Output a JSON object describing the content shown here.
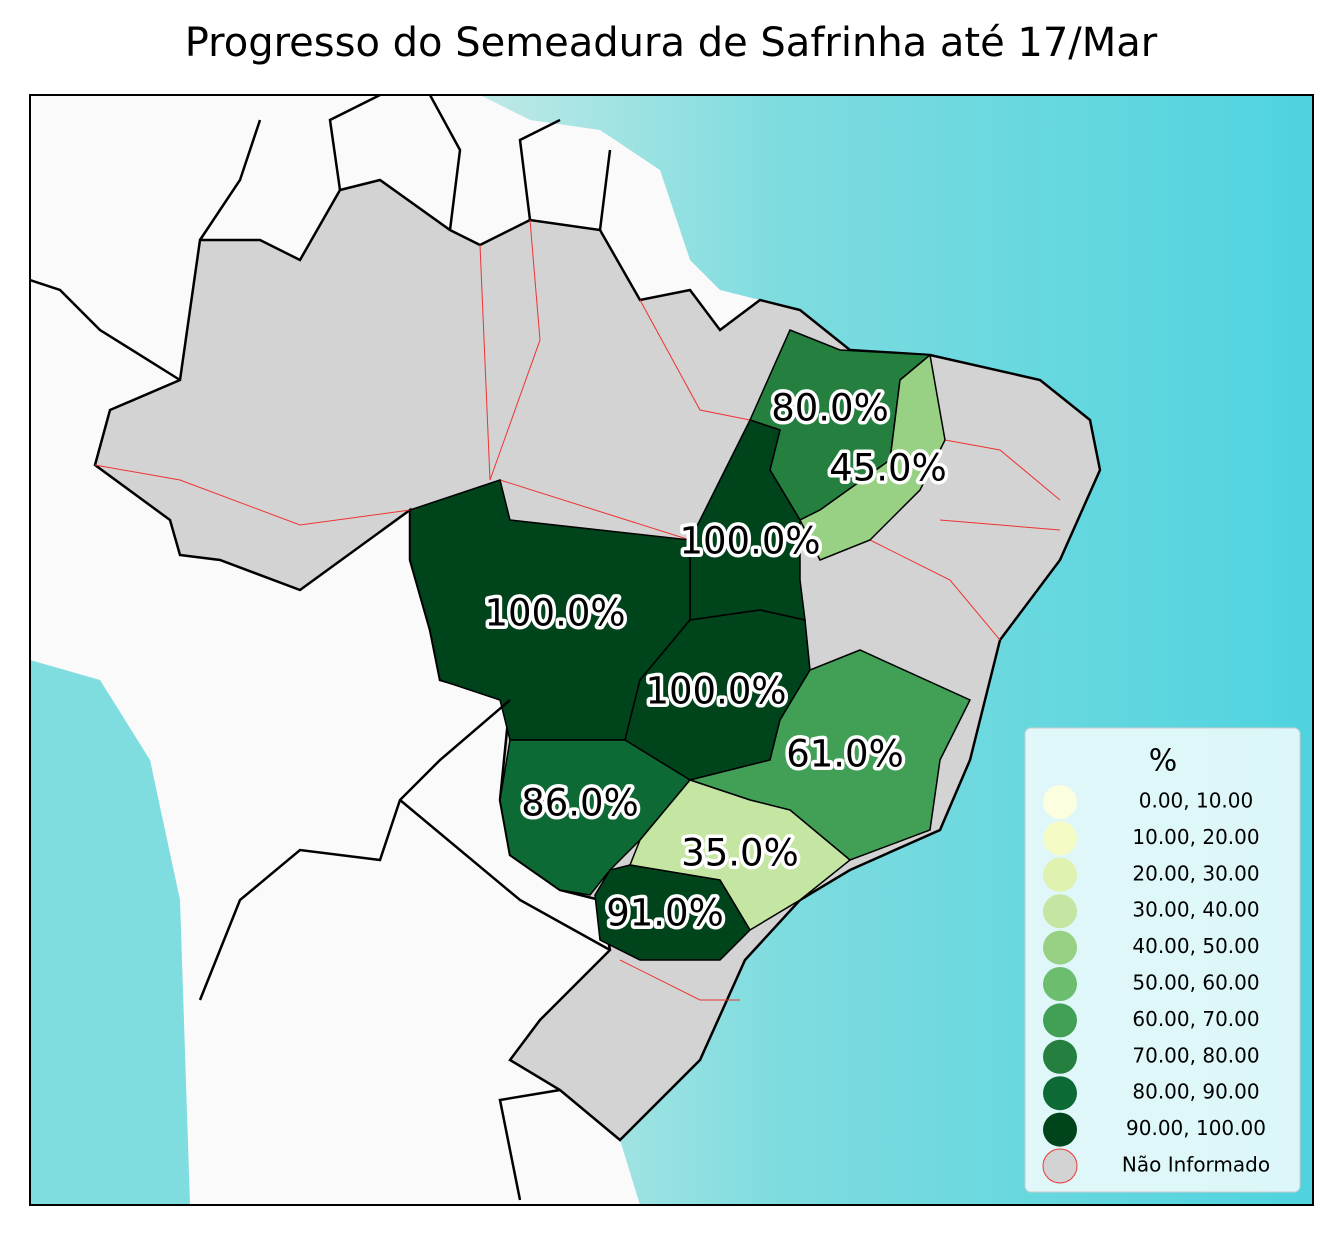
{
  "title": "Progresso do Semeadura de Safrinha até 17/Mar",
  "regions": [
    {
      "label": "80.0%",
      "value": 80
    },
    {
      "label": "45.0%",
      "value": 45
    },
    {
      "label": "100.0%",
      "value": 100
    },
    {
      "label": "100.0%",
      "value": 100
    },
    {
      "label": "100.0%",
      "value": 100
    },
    {
      "label": "61.0%",
      "value": 61
    },
    {
      "label": "86.0%",
      "value": 86
    },
    {
      "label": "35.0%",
      "value": 35
    },
    {
      "label": "91.0%",
      "value": 91
    }
  ],
  "legend": {
    "title": "%",
    "items": [
      {
        "label": "0.00,  10.00",
        "low": 0,
        "high": 10,
        "color": "#fcfee0"
      },
      {
        "label": "10.00,  20.00",
        "low": 10,
        "high": 20,
        "color": "#f4fbc4"
      },
      {
        "label": "20.00,  30.00",
        "low": 20,
        "high": 30,
        "color": "#dff2b0"
      },
      {
        "label": "30.00,  40.00",
        "low": 30,
        "high": 40,
        "color": "#c4e6a2"
      },
      {
        "label": "40.00,  50.00",
        "low": 40,
        "high": 50,
        "color": "#98d184"
      },
      {
        "label": "50.00,  60.00",
        "low": 50,
        "high": 60,
        "color": "#6dbd6e"
      },
      {
        "label": "60.00,  70.00",
        "low": 60,
        "high": 70,
        "color": "#41a055"
      },
      {
        "label": "70.00,  80.00",
        "low": 70,
        "high": 80,
        "color": "#258040"
      },
      {
        "label": "80.00,  90.00",
        "low": 80,
        "high": 90,
        "color": "#0d6a34"
      },
      {
        "label": "90.00, 100.00",
        "low": 90,
        "high": 100,
        "color": "#00441b"
      }
    ],
    "missing": {
      "label": "Não Informado",
      "color": "#d3d3d3"
    }
  }
}
